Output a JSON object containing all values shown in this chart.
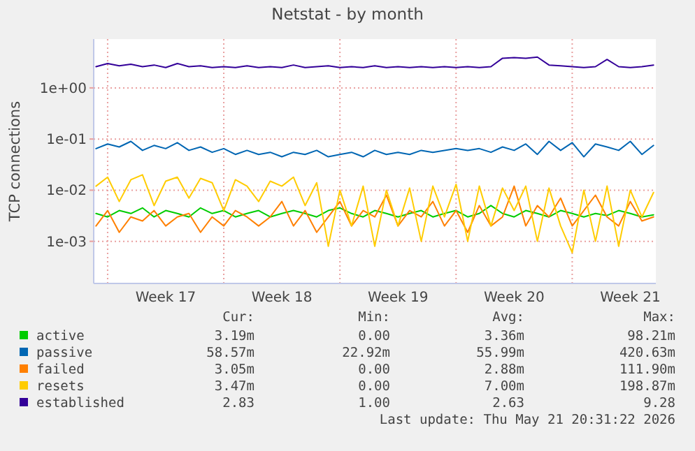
{
  "chart_data": {
    "type": "line",
    "title": "Netstat - by month",
    "ylabel": "TCP connections",
    "log": true,
    "grid": true,
    "legend": "bottom",
    "ylim": [
      0.00015,
      9
    ],
    "yticks": [
      {
        "value": 0.001,
        "label": "1e-03"
      },
      {
        "value": 0.01,
        "label": "1e-02"
      },
      {
        "value": 0.1,
        "label": "1e-01"
      },
      {
        "value": 1,
        "label": "1e+00"
      }
    ],
    "categories": [
      null,
      null,
      null,
      null,
      null,
      null,
      "Week 17",
      null,
      null,
      null,
      null,
      null,
      null,
      null,
      null,
      null,
      "Week 18",
      null,
      null,
      null,
      null,
      null,
      null,
      null,
      null,
      null,
      "Week 19",
      null,
      null,
      null,
      null,
      null,
      null,
      null,
      null,
      null,
      "Week 20",
      null,
      null,
      null,
      null,
      null,
      null,
      null,
      null,
      null,
      "Week 21",
      null,
      null
    ],
    "series": [
      {
        "name": "active",
        "color": "#00cc00",
        "values": [
          0.0035,
          0.003,
          0.004,
          0.0035,
          0.0045,
          0.003,
          0.004,
          0.0035,
          0.003,
          0.0045,
          0.0035,
          0.004,
          0.003,
          0.0035,
          0.004,
          0.003,
          0.0035,
          0.004,
          0.0035,
          0.003,
          0.004,
          0.0045,
          0.0035,
          0.003,
          0.004,
          0.0035,
          0.003,
          0.0035,
          0.004,
          0.003,
          0.0035,
          0.004,
          0.003,
          0.0035,
          0.005,
          0.0035,
          0.003,
          0.004,
          0.0035,
          0.003,
          0.004,
          0.0035,
          0.003,
          0.0035,
          0.0032,
          0.004,
          0.0035,
          0.003,
          0.0033
        ]
      },
      {
        "name": "passive",
        "color": "#0066b3",
        "values": [
          0.065,
          0.08,
          0.07,
          0.09,
          0.06,
          0.075,
          0.065,
          0.085,
          0.06,
          0.07,
          0.055,
          0.065,
          0.05,
          0.06,
          0.05,
          0.055,
          0.045,
          0.055,
          0.05,
          0.06,
          0.045,
          0.05,
          0.055,
          0.045,
          0.06,
          0.05,
          0.055,
          0.05,
          0.06,
          0.055,
          0.06,
          0.065,
          0.06,
          0.065,
          0.055,
          0.07,
          0.06,
          0.08,
          0.05,
          0.09,
          0.06,
          0.085,
          0.045,
          0.08,
          0.07,
          0.06,
          0.09,
          0.05,
          0.075
        ]
      },
      {
        "name": "failed",
        "color": "#ff8000",
        "values": [
          0.002,
          0.004,
          0.0015,
          0.003,
          0.0025,
          0.004,
          0.002,
          0.003,
          0.0035,
          0.0015,
          0.003,
          0.002,
          0.004,
          0.003,
          0.002,
          0.003,
          0.006,
          0.002,
          0.004,
          0.0015,
          0.003,
          0.006,
          0.002,
          0.004,
          0.003,
          0.008,
          0.002,
          0.004,
          0.003,
          0.006,
          0.002,
          0.004,
          0.0015,
          0.005,
          0.002,
          0.003,
          0.012,
          0.002,
          0.005,
          0.003,
          0.007,
          0.002,
          0.004,
          0.008,
          0.003,
          0.002,
          0.006,
          0.0025,
          0.003
        ]
      },
      {
        "name": "resets",
        "color": "#ffcc00",
        "values": [
          0.012,
          0.018,
          0.006,
          0.016,
          0.02,
          0.005,
          0.015,
          0.018,
          0.007,
          0.017,
          0.014,
          0.004,
          0.016,
          0.012,
          0.006,
          0.015,
          0.012,
          0.018,
          0.005,
          0.014,
          0.0008,
          0.01,
          0.002,
          0.012,
          0.0008,
          0.01,
          0.002,
          0.011,
          0.001,
          0.012,
          0.003,
          0.013,
          0.001,
          0.012,
          0.002,
          0.011,
          0.004,
          0.012,
          0.001,
          0.011,
          0.002,
          0.0006,
          0.01,
          0.001,
          0.012,
          0.0008,
          0.01,
          0.003,
          0.009
        ]
      },
      {
        "name": "established",
        "color": "#330099",
        "values": [
          2.6,
          3.0,
          2.7,
          2.9,
          2.6,
          2.8,
          2.5,
          3.0,
          2.6,
          2.7,
          2.5,
          2.6,
          2.5,
          2.7,
          2.5,
          2.6,
          2.5,
          2.8,
          2.5,
          2.6,
          2.7,
          2.5,
          2.6,
          2.5,
          2.7,
          2.5,
          2.6,
          2.5,
          2.6,
          2.5,
          2.6,
          2.5,
          2.6,
          2.5,
          2.6,
          3.8,
          3.9,
          3.8,
          4.0,
          2.8,
          2.7,
          2.6,
          2.5,
          2.6,
          3.6,
          2.6,
          2.5,
          2.6,
          2.8
        ]
      }
    ],
    "annotations": [
      "Cur:",
      "Min:",
      "Avg:",
      "Max:",
      "3.19m",
      "0.00",
      "3.36m",
      "98.21m",
      "58.57m",
      "22.92m",
      "55.99m",
      "420.63m",
      "3.05m",
      "0.00",
      "2.88m",
      "111.90m",
      "3.47m",
      "0.00",
      "7.00m",
      "198.87m",
      "2.83",
      "1.00",
      "2.63",
      "9.28",
      "Last update: Thu May 21 20:31:22 2026"
    ]
  }
}
